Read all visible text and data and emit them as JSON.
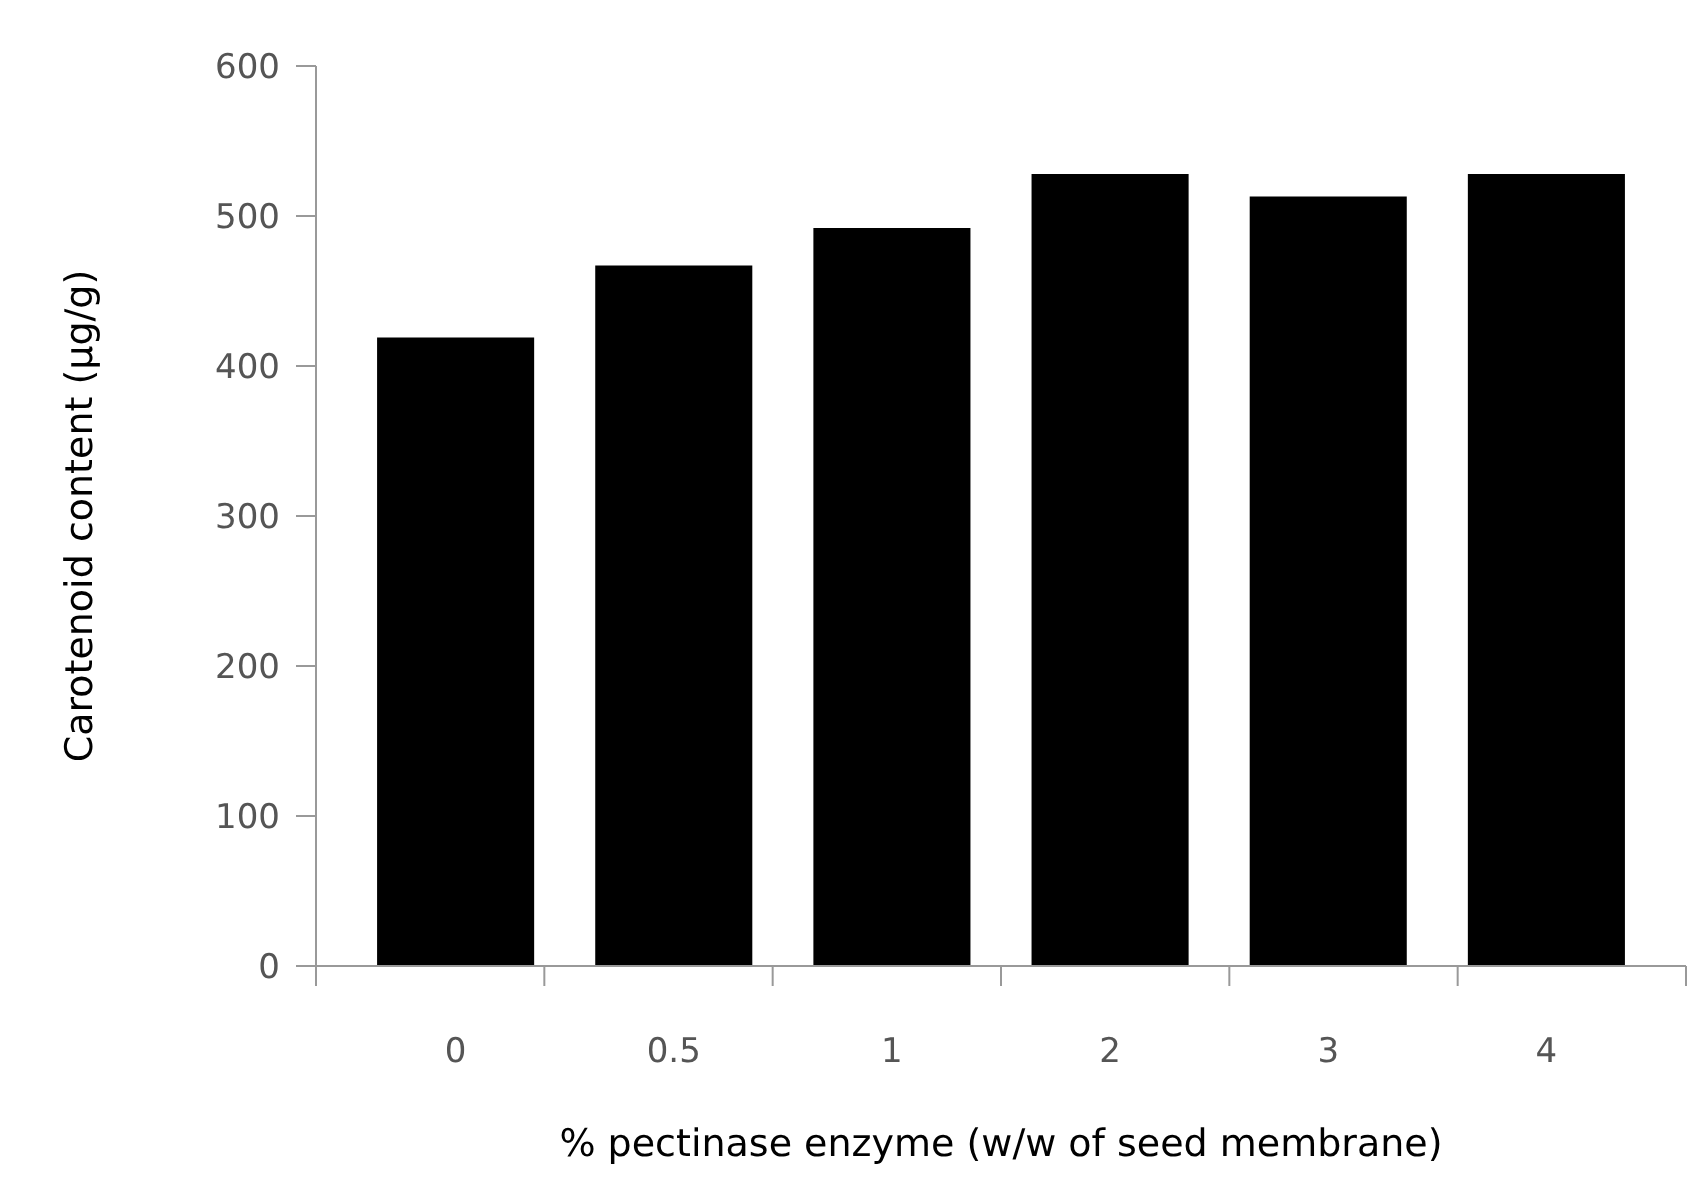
{
  "chart_data": {
    "type": "bar",
    "xlabel": "% pectinase enzyme (w/w of seed membrane)",
    "ylabel": "Carotenoid content (μg/g)",
    "categories": [
      "0",
      "0.5",
      "1",
      "2",
      "3",
      "4"
    ],
    "values": [
      419,
      467,
      492,
      528,
      513,
      528
    ],
    "color": "#000000",
    "ylim": [
      0,
      600
    ],
    "yticks": [
      0,
      100,
      200,
      300,
      400,
      500,
      600
    ],
    "grid": false
  }
}
